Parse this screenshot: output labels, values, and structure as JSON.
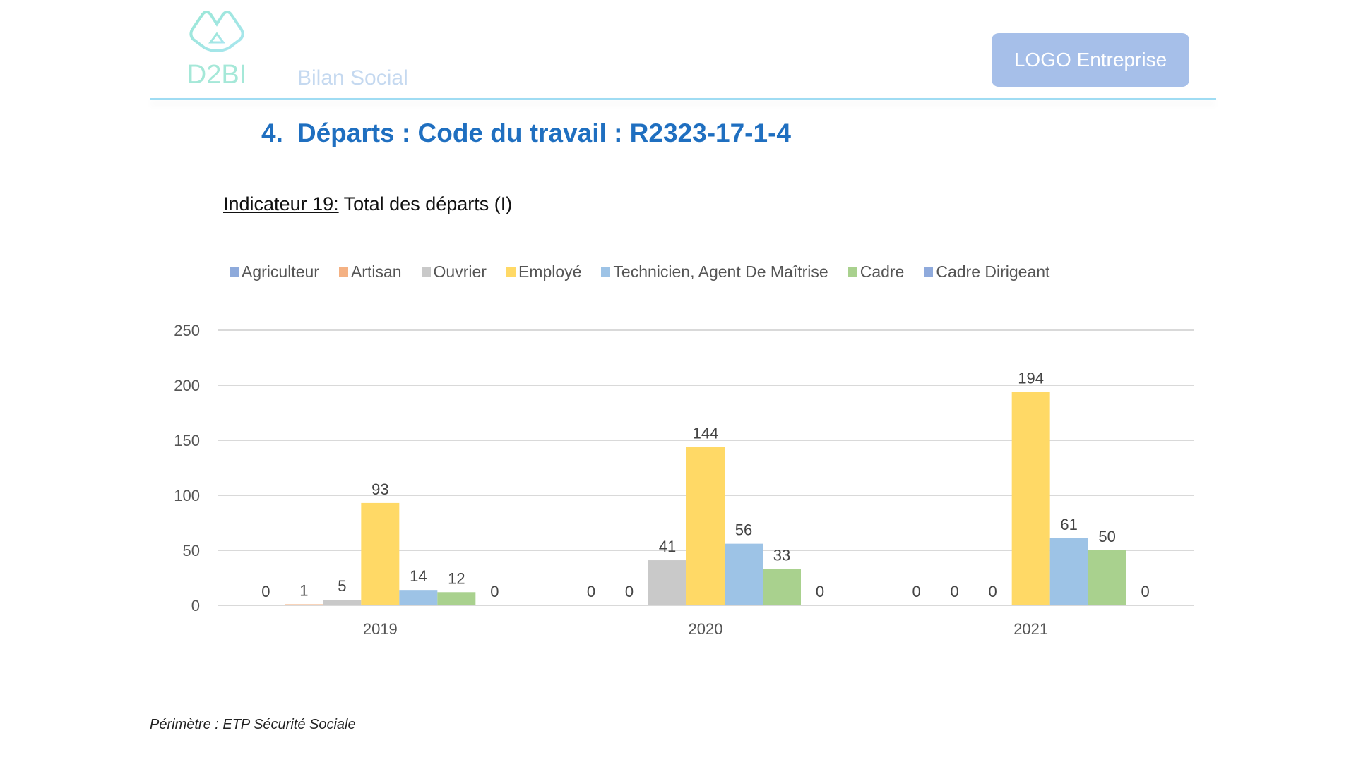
{
  "header": {
    "brand_logo_text": "D2BI",
    "subtitle": "Bilan Social",
    "company_logo_label": "LOGO Entreprise"
  },
  "section": {
    "number": "4.",
    "title": "Départs : Code du travail : R2323-17-1-4"
  },
  "indicator": {
    "label": "Indicateur 19:",
    "text": " Total des départs (I)"
  },
  "footer": {
    "perimeter": "Périmètre : ETP Sécurité Sociale"
  },
  "chart_data": {
    "type": "bar",
    "title": "Total des départs (I)",
    "categories": [
      "2019",
      "2020",
      "2021"
    ],
    "series": [
      {
        "name": "Agriculteur",
        "color": "#8eaadb",
        "values": [
          0,
          0,
          0
        ]
      },
      {
        "name": "Artisan",
        "color": "#f4b183",
        "values": [
          1,
          0,
          0
        ]
      },
      {
        "name": "Ouvrier",
        "color": "#c9c9c9",
        "values": [
          5,
          41,
          0
        ]
      },
      {
        "name": "Employé",
        "color": "#ffd966",
        "values": [
          93,
          144,
          194
        ]
      },
      {
        "name": "Technicien, Agent De Maîtrise",
        "color": "#9dc3e6",
        "values": [
          14,
          56,
          61
        ]
      },
      {
        "name": "Cadre",
        "color": "#a9d18e",
        "values": [
          12,
          33,
          50
        ]
      },
      {
        "name": "Cadre Dirigeant",
        "color": "#8faadc",
        "values": [
          0,
          0,
          0
        ]
      }
    ],
    "yticks": [
      "0",
      "50",
      "100",
      "150",
      "200",
      "250"
    ],
    "ylim": [
      0,
      250
    ],
    "xlabel": "",
    "ylabel": "",
    "grid": true,
    "legend_position": "top"
  }
}
